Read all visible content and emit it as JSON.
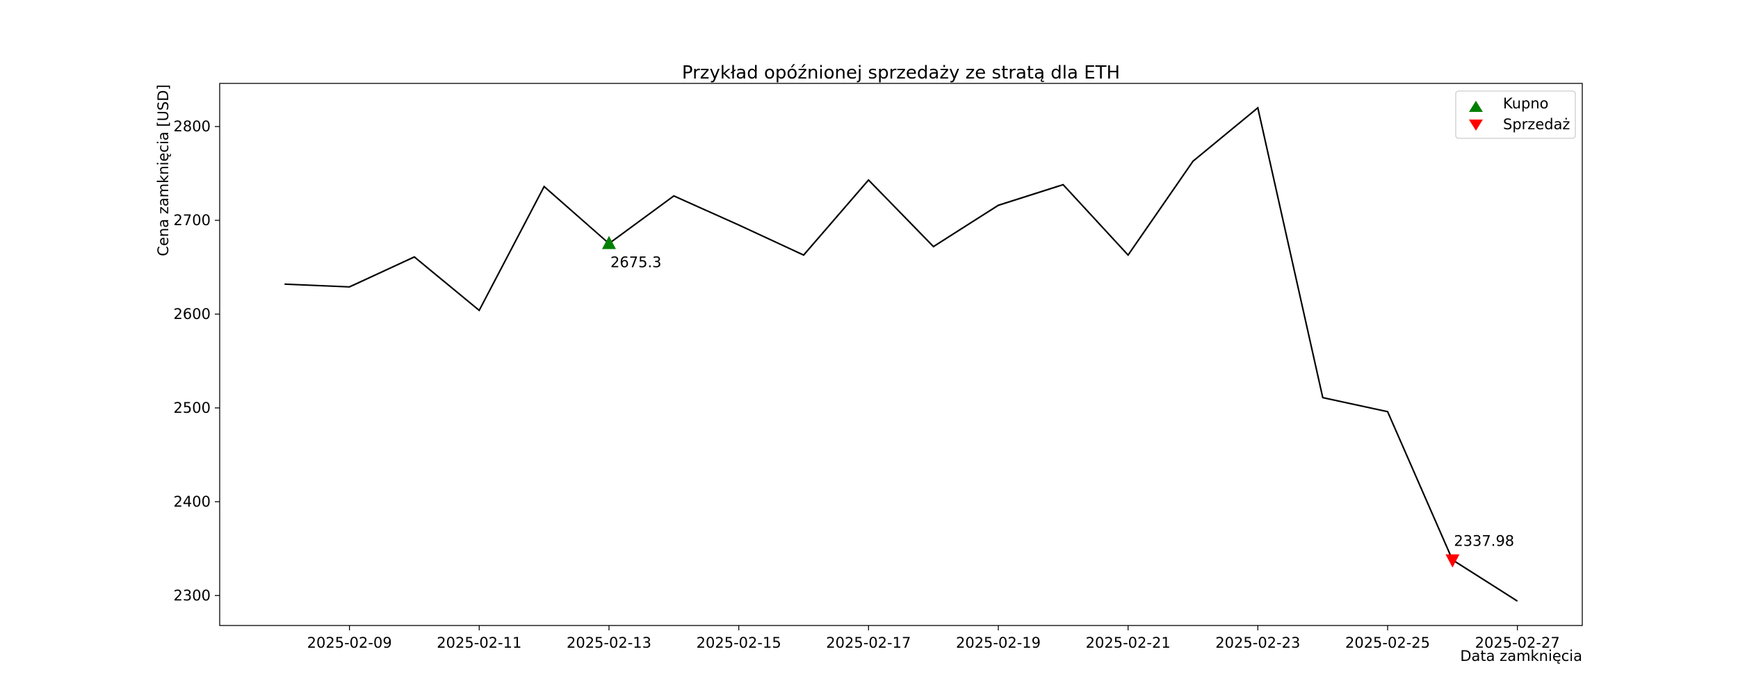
{
  "chart_data": {
    "type": "line",
    "title": "Przykład opóźnionej sprzedaży ze stratą dla ETH",
    "xlabel": "Data zamknięcia",
    "ylabel": "Cena zamknięcia [USD]",
    "x_tick_labels": [
      "2025-02-09",
      "2025-02-11",
      "2025-02-13",
      "2025-02-15",
      "2025-02-17",
      "2025-02-19",
      "2025-02-21",
      "2025-02-23",
      "2025-02-25",
      "2025-02-27"
    ],
    "y_ticks": [
      2300,
      2400,
      2500,
      2600,
      2700,
      2800
    ],
    "xlim": [
      "2025-02-07",
      "2025-02-28"
    ],
    "ylim": [
      2268,
      2846
    ],
    "grid": false,
    "legend_position": "top-right",
    "series": [
      {
        "color": "#000000",
        "x": [
          "2025-02-08",
          "2025-02-09",
          "2025-02-10",
          "2025-02-11",
          "2025-02-12",
          "2025-02-13",
          "2025-02-14",
          "2025-02-15",
          "2025-02-16",
          "2025-02-17",
          "2025-02-18",
          "2025-02-19",
          "2025-02-20",
          "2025-02-21",
          "2025-02-22",
          "2025-02-23",
          "2025-02-24",
          "2025-02-25",
          "2025-02-26",
          "2025-02-27"
        ],
        "y": [
          2632,
          2629,
          2661,
          2604,
          2736,
          2675.3,
          2726,
          2695,
          2663,
          2743,
          2672,
          2716,
          2738,
          2663,
          2763,
          2820,
          2511,
          2496,
          2337.98,
          2294
        ]
      }
    ],
    "markers": [
      {
        "name": "Kupno",
        "date": "2025-02-13",
        "value": 2675.3,
        "label": "2675.3",
        "shape": "triangle-up",
        "color": "#008000"
      },
      {
        "name": "Sprzedaż",
        "date": "2025-02-26",
        "value": 2337.98,
        "label": "2337.98",
        "shape": "triangle-down",
        "color": "#ff0000"
      }
    ]
  }
}
